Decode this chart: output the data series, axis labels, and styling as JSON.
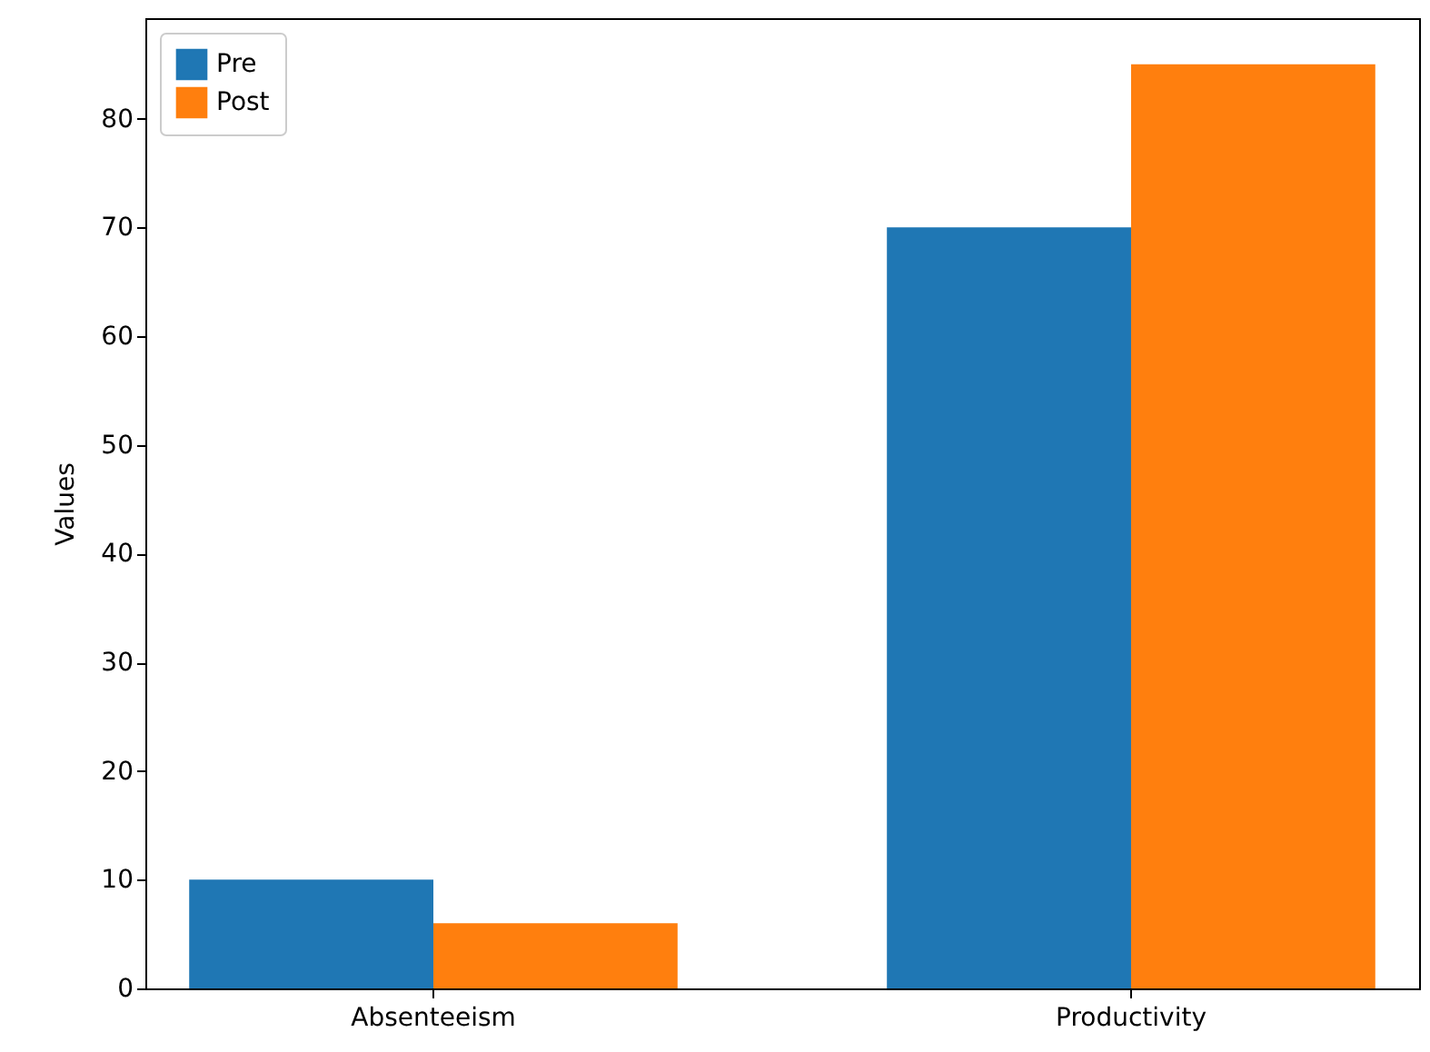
{
  "chart_data": {
    "type": "bar",
    "ylabel": "Values",
    "categories": [
      "Absenteeism",
      "Productivity"
    ],
    "series": [
      {
        "name": "Pre",
        "color": "#1f77b4",
        "values": [
          10,
          70
        ]
      },
      {
        "name": "Post",
        "color": "#ff7f0e",
        "values": [
          6,
          85
        ]
      }
    ],
    "ylim": [
      0,
      89.25
    ],
    "yticks": [
      0,
      10,
      20,
      30,
      40,
      50,
      60,
      70,
      80
    ],
    "grid": false,
    "legend": "top left"
  }
}
